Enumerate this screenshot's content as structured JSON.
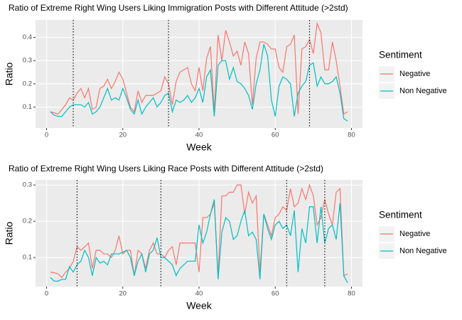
{
  "chart_data": [
    {
      "type": "line",
      "title": "Ratio of Extreme Right Wing Users Liking Immigration Posts with Different Attitude  (>2std)",
      "x_label": "Week",
      "y_label": "Ratio",
      "legend_title": "Sentiment",
      "grid": true,
      "x": [
        1,
        2,
        3,
        4,
        5,
        6,
        7,
        8,
        9,
        10,
        11,
        12,
        13,
        14,
        15,
        16,
        17,
        18,
        19,
        20,
        21,
        22,
        23,
        24,
        25,
        26,
        27,
        28,
        29,
        30,
        31,
        32,
        33,
        34,
        35,
        36,
        37,
        38,
        39,
        40,
        41,
        42,
        43,
        44,
        45,
        46,
        47,
        48,
        49,
        50,
        51,
        52,
        53,
        54,
        55,
        56,
        57,
        58,
        59,
        60,
        61,
        62,
        63,
        64,
        65,
        66,
        67,
        68,
        69,
        70,
        71,
        72,
        73,
        74,
        75,
        76,
        77,
        78,
        79
      ],
      "xlim": [
        -2.9,
        82.9
      ],
      "xticks": [
        0,
        20,
        40,
        60,
        80
      ],
      "ylim": [
        0.01,
        0.475
      ],
      "yticks": [
        0.1,
        0.2,
        0.3,
        0.4
      ],
      "vlines": [
        7,
        32,
        69
      ],
      "series": [
        {
          "name": "Negative",
          "color": "#F8766D",
          "values": [
            0.08,
            0.075,
            0.07,
            0.09,
            0.11,
            0.14,
            0.13,
            0.16,
            0.18,
            0.14,
            0.18,
            0.09,
            0.1,
            0.18,
            0.19,
            0.22,
            0.18,
            0.21,
            0.25,
            0.22,
            0.16,
            0.1,
            0.08,
            0.17,
            0.12,
            0.15,
            0.15,
            0.15,
            0.16,
            0.17,
            0.23,
            0.2,
            0.11,
            0.21,
            0.25,
            0.26,
            0.27,
            0.2,
            0.17,
            0.27,
            0.17,
            0.31,
            0.36,
            0.08,
            0.41,
            0.3,
            0.43,
            0.38,
            0.32,
            0.34,
            0.28,
            0.38,
            0.33,
            0.11,
            0.31,
            0.38,
            0.38,
            0.37,
            0.35,
            0.35,
            0.27,
            0.25,
            0.36,
            0.37,
            0.41,
            0.07,
            0.35,
            0.36,
            0.39,
            0.33,
            0.46,
            0.42,
            0.26,
            0.26,
            0.38,
            0.3,
            0.19,
            0.07,
            0.08
          ]
        },
        {
          "name": "Non Negative",
          "color": "#00BFC4",
          "values": [
            0.08,
            0.065,
            0.06,
            0.06,
            0.08,
            0.1,
            0.11,
            0.11,
            0.11,
            0.1,
            0.12,
            0.07,
            0.08,
            0.1,
            0.14,
            0.18,
            0.13,
            0.14,
            0.13,
            0.18,
            0.14,
            0.09,
            0.07,
            0.13,
            0.07,
            0.1,
            0.12,
            0.14,
            0.1,
            0.12,
            0.15,
            0.16,
            0.08,
            0.13,
            0.12,
            0.13,
            0.15,
            0.12,
            0.14,
            0.18,
            0.12,
            0.23,
            0.26,
            0.06,
            0.28,
            0.3,
            0.3,
            0.22,
            0.27,
            0.21,
            0.2,
            0.18,
            0.15,
            0.09,
            0.2,
            0.26,
            0.37,
            0.32,
            0.13,
            0.06,
            0.19,
            0.23,
            0.22,
            0.2,
            0.06,
            0.16,
            0.19,
            0.21,
            0.28,
            0.29,
            0.19,
            0.23,
            0.2,
            0.2,
            0.21,
            0.23,
            0.16,
            0.05,
            0.04
          ]
        }
      ]
    },
    {
      "type": "line",
      "title": "Ratio of Extreme Right Wing Users Liking Race Posts with Different Attitude (>2std)",
      "x_label": "Week",
      "y_label": "Ratio",
      "legend_title": "Sentiment",
      "grid": true,
      "x": [
        1,
        2,
        3,
        4,
        5,
        6,
        7,
        8,
        9,
        10,
        11,
        12,
        13,
        14,
        15,
        16,
        17,
        18,
        19,
        20,
        21,
        22,
        23,
        24,
        25,
        26,
        27,
        28,
        29,
        30,
        31,
        32,
        33,
        34,
        35,
        36,
        37,
        38,
        39,
        40,
        41,
        42,
        43,
        44,
        45,
        46,
        47,
        48,
        49,
        50,
        51,
        52,
        53,
        54,
        55,
        56,
        57,
        58,
        59,
        60,
        61,
        62,
        63,
        64,
        65,
        66,
        67,
        68,
        69,
        70,
        71,
        72,
        73,
        74,
        75,
        76,
        77,
        78,
        79
      ],
      "xlim": [
        -2.9,
        82.9
      ],
      "xticks": [
        0,
        20,
        40,
        60,
        80
      ],
      "ylim": [
        0.02,
        0.314
      ],
      "yticks": [
        0.1,
        0.2,
        0.3
      ],
      "vlines": [
        8,
        30,
        63,
        73
      ],
      "series": [
        {
          "name": "Negative",
          "color": "#F8766D",
          "values": [
            0.06,
            0.058,
            0.055,
            0.045,
            0.06,
            0.07,
            0.09,
            0.13,
            0.12,
            0.13,
            0.14,
            0.07,
            0.12,
            0.12,
            0.11,
            0.11,
            0.1,
            0.12,
            0.16,
            0.11,
            0.12,
            0.12,
            0.05,
            0.12,
            0.11,
            0.07,
            0.12,
            0.14,
            0.11,
            0.11,
            0.1,
            0.12,
            0.13,
            0.08,
            0.14,
            0.14,
            0.14,
            0.14,
            0.14,
            0.06,
            0.21,
            0.21,
            0.22,
            0.25,
            0.05,
            0.27,
            0.27,
            0.28,
            0.28,
            0.3,
            0.3,
            0.22,
            0.28,
            0.25,
            0.27,
            0.06,
            0.22,
            0.19,
            0.16,
            0.21,
            0.22,
            0.24,
            0.23,
            0.29,
            0.24,
            0.25,
            0.29,
            0.26,
            0.3,
            0.27,
            0.19,
            0.21,
            0.26,
            0.22,
            0.19,
            0.28,
            0.29,
            0.05,
            0.055
          ]
        },
        {
          "name": "Non Negative",
          "color": "#00BFC4",
          "values": [
            0.045,
            0.035,
            0.035,
            0.04,
            0.04,
            0.075,
            0.06,
            0.08,
            0.09,
            0.12,
            0.1,
            0.05,
            0.1,
            0.085,
            0.09,
            0.08,
            0.11,
            0.11,
            0.11,
            0.115,
            0.12,
            0.1,
            0.05,
            0.09,
            0.11,
            0.06,
            0.11,
            0.12,
            0.155,
            0.1,
            0.1,
            0.09,
            0.08,
            0.05,
            0.07,
            0.08,
            0.09,
            0.09,
            0.09,
            0.19,
            0.14,
            0.17,
            0.22,
            0.26,
            0.04,
            0.17,
            0.21,
            0.2,
            0.15,
            0.16,
            0.2,
            0.23,
            0.16,
            0.17,
            0.15,
            0.04,
            0.22,
            0.18,
            0.15,
            0.19,
            0.2,
            0.18,
            0.19,
            0.16,
            0.23,
            0.06,
            0.18,
            0.14,
            0.24,
            0.24,
            0.14,
            0.24,
            0.14,
            0.18,
            0.19,
            0.15,
            0.25,
            0.05,
            0.03
          ]
        }
      ]
    }
  ]
}
